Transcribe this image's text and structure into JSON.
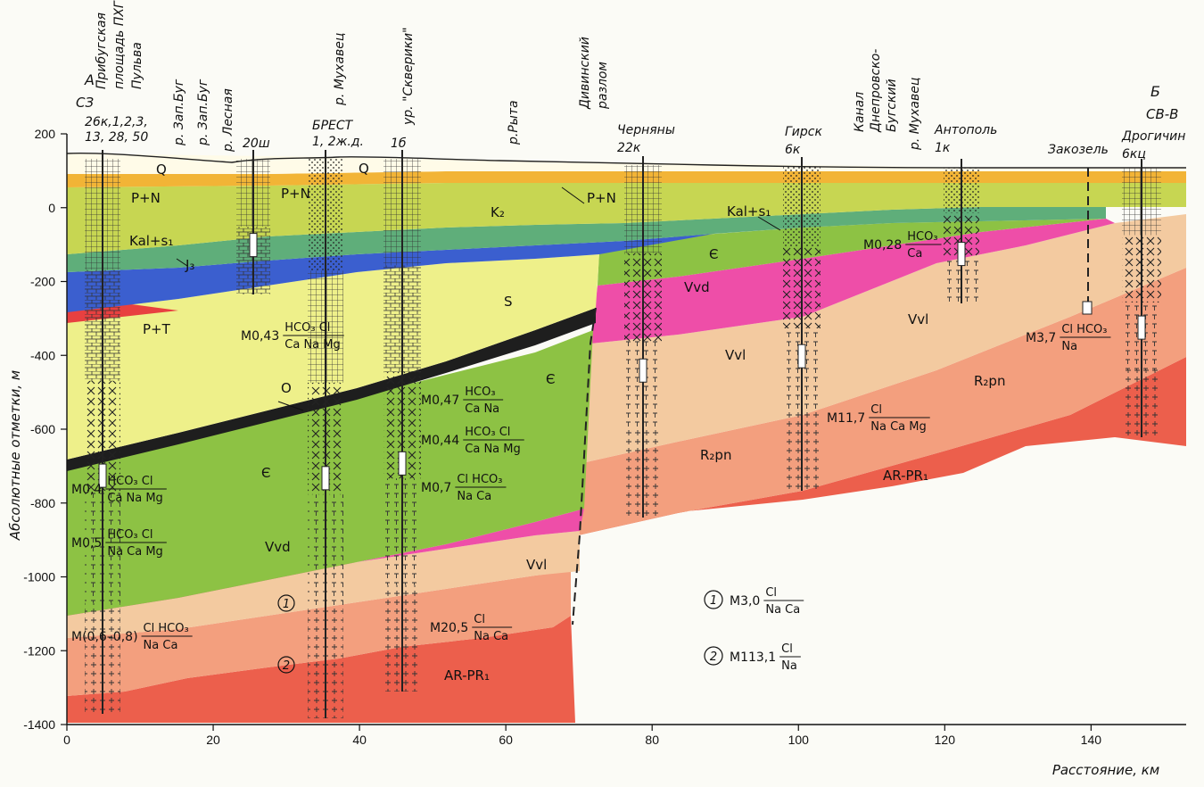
{
  "chart_data": {
    "type": "geologic-cross-section",
    "y_axis": {
      "label": "Абсолютные отметки, м",
      "ticks": [
        "200",
        "0",
        "-200",
        "-400",
        "-600",
        "-800",
        "-1000",
        "-1200",
        "-1400"
      ],
      "range": [
        -1400,
        200
      ]
    },
    "x_axis": {
      "label": "Расстояние, км",
      "ticks": [
        "0",
        "20",
        "40",
        "60",
        "80",
        "100",
        "120",
        "140"
      ],
      "range": [
        0,
        153
      ]
    },
    "profile_ends": {
      "left": "А",
      "left_dir": "СЗ",
      "right": "Б",
      "right_dir": "СВ-В"
    },
    "wells": [
      {
        "lines": [
          "Прибугская",
          "площадь ПХГ",
          "Пульва"
        ]
      },
      {
        "lines": [
          "26к,1,2,3,",
          "13, 28, 50"
        ]
      },
      {
        "lines": [
          "р. Зап.Буг"
        ]
      },
      {
        "lines": [
          "р. Зап.Буг"
        ]
      },
      {
        "lines": [
          "р. Лесная"
        ]
      },
      {
        "lines": [
          "20ш"
        ]
      },
      {
        "lines": [
          "р. Мухавец"
        ]
      },
      {
        "lines": [
          "БРЕСТ",
          "1, 2ж.д."
        ]
      },
      {
        "lines": [
          "ур. \"Скверики\""
        ]
      },
      {
        "lines": [
          "1б"
        ]
      },
      {
        "lines": [
          "р.Рыта"
        ]
      },
      {
        "lines": [
          "Дивинский",
          "разлом"
        ]
      },
      {
        "lines": [
          "Черняны",
          "22к"
        ]
      },
      {
        "lines": [
          "Гирск",
          "6к"
        ]
      },
      {
        "lines": [
          "Канал",
          "Днепровско-",
          "Бугский"
        ]
      },
      {
        "lines": [
          "р. Мухавец"
        ]
      },
      {
        "lines": [
          "Антополь",
          "1к"
        ]
      },
      {
        "lines": [
          "Закозель"
        ]
      },
      {
        "lines": [
          "Дрогичин",
          "6кц"
        ]
      }
    ],
    "formations": [
      "Q",
      "P+N",
      "K₂",
      "Kal+s₁",
      "J₃",
      "P+T",
      "S",
      "O",
      "Є",
      "Vvd",
      "Vvl",
      "R₂pn",
      "AR-PR₁"
    ],
    "water_formulas": [
      {
        "m": "M0,43",
        "num": "HCO₃ Cl",
        "den": "Ca Na Mg"
      },
      {
        "m": "M0,47",
        "num": "HCO₃",
        "den": "Ca Na"
      },
      {
        "m": "M0,44",
        "num": "HCO₃ Cl",
        "den": "Ca Na Mg"
      },
      {
        "m": "M0,7",
        "num": "Cl HCO₃",
        "den": "Na Ca"
      },
      {
        "m": "M0,4",
        "num": "HCO₃ Cl",
        "den": "Ca Na Mg"
      },
      {
        "m": "M0,5",
        "num": "HCO₃ Cl",
        "den": "Na Ca Mg"
      },
      {
        "m": "M(0,6–0,8)",
        "num": "Cl HCO₃",
        "den": "Na Ca"
      },
      {
        "m": "M20,5",
        "num": "Cl",
        "den": "Na Ca"
      },
      {
        "m": "M0,28",
        "num": "HCO₃",
        "den": "Ca"
      },
      {
        "m": "M3,7",
        "num": "Cl HCO₃",
        "den": "Na"
      },
      {
        "m": "M11,7",
        "num": "Cl",
        "den": "Na Ca Mg"
      }
    ],
    "legend": [
      {
        "n": "1",
        "m": "M3,0",
        "num": "Cl",
        "den": "Na Ca"
      },
      {
        "n": "2",
        "m": "M113,1",
        "num": "Cl",
        "den": "Na"
      }
    ],
    "colors": {
      "ar": "#ec5f4c",
      "r2": "#f39f7e",
      "vvl": "#f3caa0",
      "vvd": "#ee4ea8",
      "cam": "#8dc244",
      "ord": "#1e1e1e",
      "sil": "#eef08a",
      "j3": "#3b5fcf",
      "kal": "#5fae7a",
      "k2": "#c7d652",
      "pn": "#f2b436",
      "q": "#fffbe8",
      "pt": "#e84040"
    }
  }
}
